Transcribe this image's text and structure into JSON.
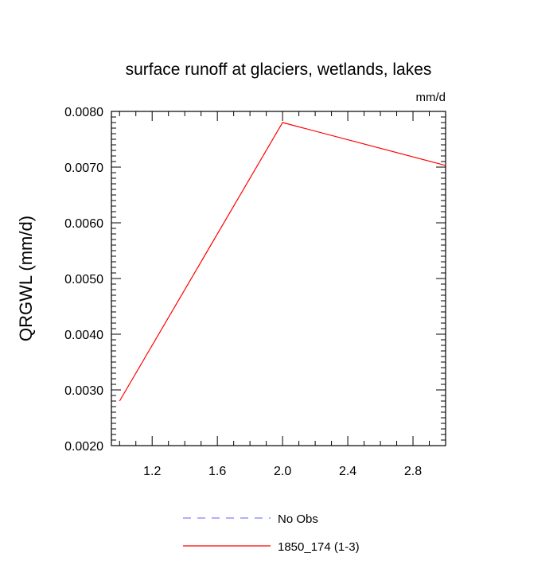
{
  "chart_data": {
    "type": "line",
    "title": "surface runoff at glaciers, wetlands, lakes",
    "units_label": "mm/d",
    "ylabel": "QRGWL  (mm/d)",
    "xlabel": "",
    "xlim": [
      0.95,
      3.0
    ],
    "ylim": [
      0.002,
      0.008
    ],
    "x_ticks": [
      1.2,
      1.6,
      2.0,
      2.4,
      2.8
    ],
    "x_tick_labels": [
      "1.2",
      "1.6",
      "2.0",
      "2.4",
      "2.8"
    ],
    "y_ticks": [
      0.002,
      0.003,
      0.004,
      0.005,
      0.006,
      0.007,
      0.008
    ],
    "y_tick_labels": [
      "0.0020",
      "0.0030",
      "0.0040",
      "0.0050",
      "0.0060",
      "0.0070",
      "0.0080"
    ],
    "series": [
      {
        "name": "1850_174 (1-3)",
        "color": "#ff0000",
        "dash": "solid",
        "x": [
          1.0,
          2.0,
          3.0
        ],
        "y": [
          0.0028,
          0.0078,
          0.00703
        ]
      }
    ],
    "legend": {
      "placement": "bottom-center",
      "entries": [
        {
          "label": "No Obs",
          "color": "#8080ff",
          "dash": "dashed"
        },
        {
          "label": "1850_174 (1-3)",
          "color": "#ff0000",
          "dash": "solid"
        }
      ]
    },
    "grid": false
  }
}
